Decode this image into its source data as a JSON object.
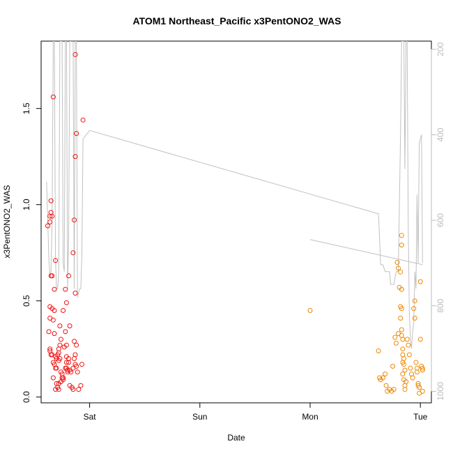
{
  "chart_data": {
    "type": "scatter",
    "title": "ATOM1 Northeast_Pacific x3PentONO2_WAS",
    "xlabel": "Date",
    "ylabel": "x3PentONO2_WAS",
    "x_unit": "days",
    "xlim": [
      -0.44,
      3.1
    ],
    "ylim": [
      -0.03,
      1.85
    ],
    "x_ticks": [
      {
        "value": 0,
        "label": "Sat"
      },
      {
        "value": 1,
        "label": "Sun"
      },
      {
        "value": 2,
        "label": "Mon"
      },
      {
        "value": 3,
        "label": "Tue"
      }
    ],
    "y_ticks": [
      0.0,
      0.5,
      1.0,
      1.5
    ],
    "y_tick_labels": [
      "0.0",
      "0.5",
      "1.0",
      "1.5"
    ],
    "y2_ticks": [
      200,
      400,
      600,
      800,
      1000
    ],
    "y2_tick_labels": [
      "200",
      "400",
      "600",
      "800",
      "1000"
    ],
    "y2_lim": [
      1027,
      181
    ],
    "grid": false,
    "colors": {
      "series1": "#ee1111",
      "series2": "#ee8800",
      "line": "#c0c0c0"
    },
    "series": [
      {
        "color": "#ee1111",
        "points": [
          [
            -0.38,
            0.89
          ],
          [
            -0.37,
            0.34
          ],
          [
            -0.35,
            1.02
          ],
          [
            -0.35,
            0.96
          ],
          [
            -0.36,
            0.94
          ],
          [
            -0.36,
            0.91
          ],
          [
            -0.34,
            0.94
          ],
          [
            -0.33,
            1.56
          ],
          [
            -0.35,
            0.63
          ],
          [
            -0.34,
            0.63
          ],
          [
            -0.36,
            0.47
          ],
          [
            -0.34,
            0.46
          ],
          [
            -0.32,
            0.45
          ],
          [
            -0.36,
            0.41
          ],
          [
            -0.33,
            0.4
          ],
          [
            -0.31,
            0.71
          ],
          [
            -0.32,
            0.56
          ],
          [
            -0.36,
            0.25
          ],
          [
            -0.35,
            0.22
          ],
          [
            -0.36,
            0.24
          ],
          [
            -0.34,
            0.22
          ],
          [
            -0.33,
            0.18
          ],
          [
            -0.32,
            0.17
          ],
          [
            -0.31,
            0.21
          ],
          [
            -0.3,
            0.2
          ],
          [
            -0.31,
            0.15
          ],
          [
            -0.3,
            0.15
          ],
          [
            -0.32,
            0.33
          ],
          [
            -0.28,
            0.25
          ],
          [
            -0.29,
            0.22
          ],
          [
            -0.28,
            0.23
          ],
          [
            -0.27,
            0.2
          ],
          [
            -0.28,
            0.19
          ],
          [
            -0.27,
            0.27
          ],
          [
            -0.26,
            0.3
          ],
          [
            -0.27,
            0.37
          ],
          [
            -0.26,
            0.13
          ],
          [
            -0.25,
            0.12
          ],
          [
            -0.25,
            0.1
          ],
          [
            -0.24,
            0.1
          ],
          [
            -0.26,
            0.08
          ],
          [
            -0.24,
            0.09
          ],
          [
            -0.3,
            0.07
          ],
          [
            -0.28,
            0.07
          ],
          [
            -0.29,
            0.05
          ],
          [
            -0.31,
            0.04
          ],
          [
            -0.28,
            0.04
          ],
          [
            -0.33,
            0.1
          ],
          [
            -0.24,
            0.45
          ],
          [
            -0.22,
            0.56
          ],
          [
            -0.21,
            0.49
          ],
          [
            -0.22,
            0.34
          ],
          [
            -0.23,
            0.26
          ],
          [
            -0.21,
            0.27
          ],
          [
            -0.21,
            0.21
          ],
          [
            -0.21,
            0.18
          ],
          [
            -0.21,
            0.15
          ],
          [
            -0.2,
            0.14
          ],
          [
            -0.22,
            0.15
          ],
          [
            -0.2,
            0.13
          ],
          [
            -0.19,
            0.63
          ],
          [
            -0.18,
            0.37
          ],
          [
            -0.19,
            0.2
          ],
          [
            -0.19,
            0.18
          ],
          [
            -0.18,
            0.14
          ],
          [
            -0.17,
            0.13
          ],
          [
            -0.18,
            0.06
          ],
          [
            -0.16,
            0.05
          ],
          [
            -0.15,
            0.04
          ],
          [
            -0.15,
            0.15
          ],
          [
            -0.14,
            0.29
          ],
          [
            -0.14,
            0.2
          ],
          [
            -0.13,
            0.17
          ],
          [
            -0.15,
            0.75
          ],
          [
            -0.14,
            0.92
          ],
          [
            -0.13,
            0.54
          ],
          [
            -0.13,
            1.25
          ],
          [
            -0.12,
            1.37
          ],
          [
            -0.13,
            1.78
          ],
          [
            -0.12,
            0.27
          ],
          [
            -0.13,
            0.22
          ],
          [
            -0.12,
            0.16
          ],
          [
            -0.11,
            0.13
          ],
          [
            -0.1,
            0.04
          ],
          [
            -0.08,
            0.06
          ],
          [
            -0.07,
            0.17
          ],
          [
            -0.06,
            1.44
          ]
        ]
      },
      {
        "color": "#ee8800",
        "points": [
          [
            2.0,
            0.45
          ],
          [
            2.62,
            0.24
          ],
          [
            2.63,
            0.1
          ],
          [
            2.64,
            0.09
          ],
          [
            2.66,
            0.1
          ],
          [
            2.68,
            0.12
          ],
          [
            2.69,
            0.06
          ],
          [
            2.7,
            0.03
          ],
          [
            2.72,
            0.04
          ],
          [
            2.74,
            0.03
          ],
          [
            2.75,
            0.16
          ],
          [
            2.76,
            0.04
          ],
          [
            2.77,
            0.31
          ],
          [
            2.78,
            0.28
          ],
          [
            2.8,
            0.33
          ],
          [
            2.79,
            0.7
          ],
          [
            2.8,
            0.67
          ],
          [
            2.81,
            0.57
          ],
          [
            2.82,
            0.65
          ],
          [
            2.82,
            0.47
          ],
          [
            2.83,
            0.46
          ],
          [
            2.82,
            0.41
          ],
          [
            2.83,
            0.84
          ],
          [
            2.83,
            0.79
          ],
          [
            2.83,
            0.56
          ],
          [
            2.83,
            0.35
          ],
          [
            2.83,
            0.32
          ],
          [
            2.84,
            0.3
          ],
          [
            2.84,
            0.25
          ],
          [
            2.84,
            0.22
          ],
          [
            2.85,
            0.2
          ],
          [
            2.84,
            0.18
          ],
          [
            2.85,
            0.17
          ],
          [
            2.86,
            0.14
          ],
          [
            2.84,
            0.12
          ],
          [
            2.85,
            0.09
          ],
          [
            2.87,
            0.08
          ],
          [
            2.86,
            0.06
          ],
          [
            2.86,
            0.04
          ],
          [
            2.88,
            0.3
          ],
          [
            2.89,
            0.27
          ],
          [
            2.9,
            0.22
          ],
          [
            2.91,
            0.15
          ],
          [
            2.92,
            0.12
          ],
          [
            2.93,
            0.1
          ],
          [
            2.94,
            0.46
          ],
          [
            2.95,
            0.41
          ],
          [
            2.95,
            0.5
          ],
          [
            2.96,
            0.18
          ],
          [
            2.97,
            0.15
          ],
          [
            2.97,
            0.13
          ],
          [
            2.98,
            0.07
          ],
          [
            2.98,
            0.06
          ],
          [
            2.99,
            0.05
          ],
          [
            2.99,
            0.02
          ],
          [
            3.0,
            0.6
          ],
          [
            3.0,
            0.3
          ],
          [
            3.01,
            0.16
          ],
          [
            3.02,
            0.15
          ],
          [
            3.02,
            0.14
          ],
          [
            3.02,
            0.03
          ]
        ]
      }
    ],
    "line_series": {
      "color": "#c0c0c0",
      "axis": "right",
      "segments": [
        [
          [
            -0.39,
            510
          ],
          [
            -0.38,
            600
          ],
          [
            -0.37,
            690
          ],
          [
            -0.36,
            730
          ],
          [
            -0.35,
            720
          ],
          [
            -0.34,
            600
          ],
          [
            -0.33,
            181
          ],
          [
            -0.32,
            181
          ],
          [
            -0.31,
            690
          ],
          [
            -0.3,
            760
          ],
          [
            -0.29,
            760
          ],
          [
            -0.28,
            720
          ],
          [
            -0.27,
            181
          ],
          [
            -0.26,
            181
          ],
          [
            -0.25,
            181
          ],
          [
            -0.24,
            700
          ],
          [
            -0.23,
            720
          ],
          [
            -0.22,
            181
          ],
          [
            -0.21,
            181
          ],
          [
            -0.2,
            760
          ],
          [
            -0.19,
            640
          ],
          [
            -0.18,
            181
          ],
          [
            -0.17,
            181
          ],
          [
            -0.16,
            180
          ],
          [
            -0.15,
            181
          ],
          [
            -0.14,
            760
          ],
          [
            -0.13,
            181
          ],
          [
            -0.12,
            181
          ],
          [
            -0.11,
            780
          ],
          [
            -0.1,
            770
          ],
          [
            -0.09,
            760
          ],
          [
            -0.08,
            760
          ],
          [
            -0.07,
            680
          ],
          [
            -0.06,
            410
          ],
          [
            0.0,
            390
          ],
          [
            2.62,
            585
          ],
          [
            2.64,
            704
          ],
          [
            2.66,
            704
          ],
          [
            2.68,
            720
          ],
          [
            2.72,
            720
          ],
          [
            2.73,
            750
          ],
          [
            2.76,
            750
          ],
          [
            2.78,
            720
          ],
          [
            2.8,
            720
          ],
          [
            2.82,
            400
          ],
          [
            2.83,
            181
          ],
          [
            2.84,
            181
          ],
          [
            2.85,
            181
          ],
          [
            2.86,
            480
          ],
          [
            2.87,
            181
          ],
          [
            2.88,
            181
          ],
          [
            2.89,
            620
          ],
          [
            2.9,
            820
          ],
          [
            2.91,
            880
          ],
          [
            2.92,
            900
          ],
          [
            2.93,
            860
          ],
          [
            2.94,
            840
          ],
          [
            2.95,
            720
          ],
          [
            2.96,
            760
          ],
          [
            2.97,
            540
          ],
          [
            2.98,
            700
          ],
          [
            2.99,
            420
          ],
          [
            3.0,
            410
          ],
          [
            3.01,
            400
          ],
          [
            3.02,
            700
          ]
        ],
        [
          [
            2.0,
            645
          ],
          [
            3.02,
            704
          ]
        ]
      ]
    }
  }
}
